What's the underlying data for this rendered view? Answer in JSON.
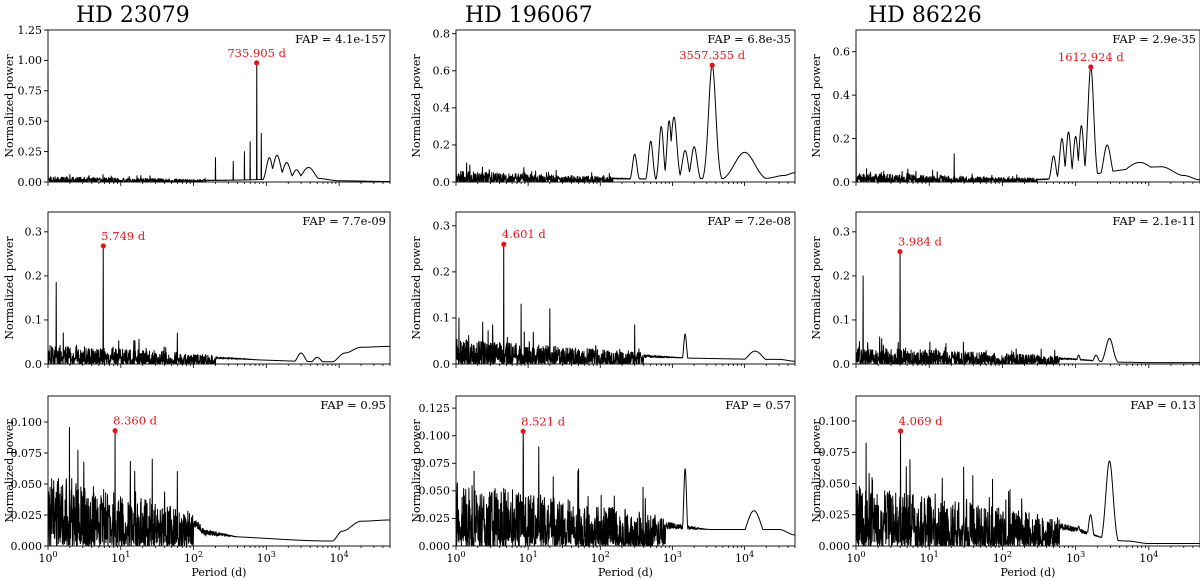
{
  "figure": {
    "columns": [
      "HD 23079",
      "HD 196067",
      "HD 86226"
    ],
    "xlabel": "Period (d)",
    "ylabel": "Normalized power",
    "xtick_labels": [
      "10",
      "10",
      "10",
      "10",
      "10"
    ],
    "xtick_exponents": [
      "0",
      "1",
      "2",
      "3",
      "4"
    ],
    "peak_color": "#e8141b",
    "line_color": "#000000"
  },
  "chart_data": [
    {
      "type": "line",
      "id": "p00",
      "star": "HD 23079",
      "row": 0,
      "xscale": "log",
      "xlim": [
        1,
        50000
      ],
      "ylim": [
        0,
        1.25
      ],
      "yticks": [
        0,
        0.25,
        0.5,
        0.75,
        1.0,
        1.25
      ],
      "ytick_labels": [
        "0.00",
        "0.25",
        "0.50",
        "0.75",
        "1.00",
        "1.25"
      ],
      "fap": "FAP = 4.1e-157",
      "peak": {
        "period": 735.905,
        "power": 0.98,
        "label": "735.905 d"
      },
      "noise_level": 0.045,
      "noise_end": 150,
      "features": [
        {
          "p": 1.0,
          "h": 0.93,
          "w": 0
        },
        {
          "p": 200,
          "h": 0.2,
          "w": 0
        },
        {
          "p": 350,
          "h": 0.17,
          "w": 0
        },
        {
          "p": 500,
          "h": 0.25,
          "w": 0
        },
        {
          "p": 600,
          "h": 0.33,
          "w": 0
        },
        {
          "p": 850,
          "h": 0.4,
          "w": 0
        },
        {
          "p": 1100,
          "h": 0.2,
          "w": 0.04
        },
        {
          "p": 1400,
          "h": 0.22,
          "w": 0.05
        },
        {
          "p": 1900,
          "h": 0.16,
          "w": 0.05
        },
        {
          "p": 2600,
          "h": 0.1,
          "w": 0.05
        },
        {
          "p": 3800,
          "h": 0.12,
          "w": 0.08
        }
      ],
      "tail": [
        {
          "p": 5000,
          "v": 0.03
        },
        {
          "p": 10000,
          "v": 0.01
        },
        {
          "p": 50000,
          "v": 0.004
        }
      ]
    },
    {
      "type": "line",
      "id": "p01",
      "star": "HD 196067",
      "row": 0,
      "xscale": "log",
      "xlim": [
        1,
        50000
      ],
      "ylim": [
        0,
        0.82
      ],
      "yticks": [
        0,
        0.2,
        0.4,
        0.6,
        0.8
      ],
      "ytick_labels": [
        "0.0",
        "0.2",
        "0.4",
        "0.6",
        "0.8"
      ],
      "fap": "FAP = 6.8e-35",
      "peak": {
        "period": 3557.355,
        "power": 0.63,
        "label": "3557.355 d"
      },
      "noise_level": 0.06,
      "noise_end": 150,
      "features": [
        {
          "p": 1.0,
          "h": 0.41,
          "w": 0
        },
        {
          "p": 300,
          "h": 0.15,
          "w": 0.03
        },
        {
          "p": 500,
          "h": 0.22,
          "w": 0.03
        },
        {
          "p": 700,
          "h": 0.3,
          "w": 0.03
        },
        {
          "p": 900,
          "h": 0.33,
          "w": 0.03
        },
        {
          "p": 1050,
          "h": 0.35,
          "w": 0.04
        },
        {
          "p": 1500,
          "h": 0.17,
          "w": 0.04
        },
        {
          "p": 2000,
          "h": 0.19,
          "w": 0.04
        },
        {
          "p": 3557.355,
          "h": 0.63,
          "w": 0.05
        },
        {
          "p": 10000,
          "h": 0.16,
          "w": 0.14
        }
      ],
      "tail": [
        {
          "p": 20000,
          "v": 0.02
        },
        {
          "p": 35000,
          "v": 0.035
        },
        {
          "p": 50000,
          "v": 0.05
        }
      ]
    },
    {
      "type": "line",
      "id": "p02",
      "star": "HD 86226",
      "row": 0,
      "xscale": "log",
      "xlim": [
        1,
        50000
      ],
      "ylim": [
        0,
        0.7
      ],
      "yticks": [
        0,
        0.2,
        0.4,
        0.6
      ],
      "ytick_labels": [
        "0.0",
        "0.2",
        "0.4",
        "0.6"
      ],
      "fap": "FAP = 2.9e-35",
      "peak": {
        "period": 1612.924,
        "power": 0.53,
        "label": "1612.924 d"
      },
      "noise_level": 0.04,
      "noise_end": 300,
      "features": [
        {
          "p": 1.0,
          "h": 0.44,
          "w": 0
        },
        {
          "p": 22,
          "h": 0.13,
          "w": 0
        },
        {
          "p": 500,
          "h": 0.12,
          "w": 0.03
        },
        {
          "p": 650,
          "h": 0.2,
          "w": 0.03
        },
        {
          "p": 800,
          "h": 0.23,
          "w": 0.03
        },
        {
          "p": 1000,
          "h": 0.21,
          "w": 0.03
        },
        {
          "p": 1200,
          "h": 0.26,
          "w": 0.03
        },
        {
          "p": 1612.924,
          "h": 0.53,
          "w": 0.04
        },
        {
          "p": 2700,
          "h": 0.17,
          "w": 0.05
        },
        {
          "p": 7500,
          "h": 0.09,
          "w": 0.2
        }
      ],
      "tail": [
        {
          "p": 15000,
          "v": 0.07
        },
        {
          "p": 30000,
          "v": 0.03
        },
        {
          "p": 50000,
          "v": 0.01
        }
      ]
    },
    {
      "type": "line",
      "id": "p10",
      "star": "HD 23079",
      "row": 1,
      "xscale": "log",
      "xlim": [
        1,
        50000
      ],
      "ylim": [
        0,
        0.345
      ],
      "yticks": [
        0,
        0.1,
        0.2,
        0.3
      ],
      "ytick_labels": [
        "0.0",
        "0.1",
        "0.2",
        "0.3"
      ],
      "fap": "FAP = 7.7e-09",
      "peak": {
        "period": 5.749,
        "power": 0.268,
        "label": "5.749 d"
      },
      "noise_level": 0.045,
      "noise_end": 200,
      "features": [
        {
          "p": 1.3,
          "h": 0.185,
          "w": 0
        },
        {
          "p": 60,
          "h": 0.07,
          "w": 0
        },
        {
          "p": 3000,
          "h": 0.025,
          "w": 0.05
        },
        {
          "p": 5000,
          "h": 0.015,
          "w": 0.05
        }
      ],
      "tail": [
        {
          "p": 8000,
          "v": 0.005
        },
        {
          "p": 12000,
          "v": 0.025
        },
        {
          "p": 20000,
          "v": 0.038
        },
        {
          "p": 50000,
          "v": 0.04
        }
      ]
    },
    {
      "type": "line",
      "id": "p11",
      "star": "HD 196067",
      "row": 1,
      "xscale": "log",
      "xlim": [
        1,
        50000
      ],
      "ylim": [
        0,
        0.33
      ],
      "yticks": [
        0,
        0.1,
        0.2,
        0.3
      ],
      "ytick_labels": [
        "0.0",
        "0.1",
        "0.2",
        "0.3"
      ],
      "fap": "FAP = 7.2e-08",
      "peak": {
        "period": 4.601,
        "power": 0.26,
        "label": "4.601 d"
      },
      "noise_level": 0.055,
      "noise_end": 400,
      "features": [
        {
          "p": 1.1,
          "h": 0.1,
          "w": 0
        },
        {
          "p": 8,
          "h": 0.13,
          "w": 0
        },
        {
          "p": 20,
          "h": 0.12,
          "w": 0
        },
        {
          "p": 300,
          "h": 0.085,
          "w": 0
        },
        {
          "p": 1500,
          "h": 0.065,
          "w": 0.02
        },
        {
          "p": 14000,
          "h": 0.028,
          "w": 0.1
        }
      ],
      "tail": [
        {
          "p": 30000,
          "v": 0.01
        },
        {
          "p": 50000,
          "v": 0.006
        }
      ]
    },
    {
      "type": "line",
      "id": "p12",
      "star": "HD 86226",
      "row": 1,
      "xscale": "log",
      "xlim": [
        1,
        50000
      ],
      "ylim": [
        0,
        0.345
      ],
      "yticks": [
        0,
        0.1,
        0.2,
        0.3
      ],
      "ytick_labels": [
        "0.0",
        "0.1",
        "0.2",
        "0.3"
      ],
      "fap": "FAP = 2.1e-11",
      "peak": {
        "period": 3.984,
        "power": 0.255,
        "label": "3.984 d"
      },
      "noise_level": 0.04,
      "noise_end": 600,
      "features": [
        {
          "p": 1.25,
          "h": 0.2,
          "w": 0
        },
        {
          "p": 1100,
          "h": 0.02,
          "w": 0.02
        },
        {
          "p": 1900,
          "h": 0.02,
          "w": 0.03
        },
        {
          "p": 2900,
          "h": 0.058,
          "w": 0.05
        }
      ],
      "tail": [
        {
          "p": 5000,
          "v": 0.004
        },
        {
          "p": 10000,
          "v": 0.003
        },
        {
          "p": 50000,
          "v": 0.003
        }
      ]
    },
    {
      "type": "line",
      "id": "p20",
      "star": "HD 23079",
      "row": 2,
      "xscale": "log",
      "xlim": [
        1,
        50000
      ],
      "ylim": [
        0,
        0.121
      ],
      "yticks": [
        0,
        0.025,
        0.05,
        0.075,
        0.1
      ],
      "ytick_labels": [
        "0.000",
        "0.025",
        "0.050",
        "0.075",
        "0.100"
      ],
      "fap": "FAP = 0.95",
      "peak": {
        "period": 8.36,
        "power": 0.093,
        "label": "8.360 d"
      },
      "noise_level": 0.06,
      "noise_end": 100,
      "features": [
        {
          "p": 27,
          "h": 0.07,
          "w": 0
        },
        {
          "p": 60,
          "h": 0.06,
          "w": 0
        }
      ],
      "tail": [
        {
          "p": 150,
          "v": 0.008
        },
        {
          "p": 8000,
          "v": 0.004
        },
        {
          "p": 11000,
          "v": 0.012
        },
        {
          "p": 20000,
          "v": 0.02
        },
        {
          "p": 50000,
          "v": 0.021
        }
      ]
    },
    {
      "type": "line",
      "id": "p21",
      "star": "HD 196067",
      "row": 2,
      "xscale": "log",
      "xlim": [
        1,
        50000
      ],
      "ylim": [
        0,
        0.136
      ],
      "yticks": [
        0,
        0.025,
        0.05,
        0.075,
        0.1,
        0.125
      ],
      "ytick_labels": [
        "0.000",
        "0.025",
        "0.050",
        "0.075",
        "0.100",
        "0.125"
      ],
      "fap": "FAP = 0.57",
      "peak": {
        "period": 8.521,
        "power": 0.104,
        "label": "8.521 d"
      },
      "noise_level": 0.06,
      "noise_end": 800,
      "features": [
        {
          "p": 14,
          "h": 0.09,
          "w": 0
        },
        {
          "p": 1500,
          "h": 0.07,
          "w": 0.02
        },
        {
          "p": 13500,
          "h": 0.032,
          "w": 0.1
        }
      ],
      "tail": [
        {
          "p": 30000,
          "v": 0.015
        },
        {
          "p": 50000,
          "v": 0.01
        }
      ]
    },
    {
      "type": "line",
      "id": "p22",
      "star": "HD 86226",
      "row": 2,
      "xscale": "log",
      "xlim": [
        1,
        50000
      ],
      "ylim": [
        0,
        0.12
      ],
      "yticks": [
        0,
        0.025,
        0.05,
        0.075,
        0.1
      ],
      "ytick_labels": [
        "0.000",
        "0.025",
        "0.050",
        "0.075",
        "0.100"
      ],
      "fap": "FAP = 0.13",
      "peak": {
        "period": 4.069,
        "power": 0.092,
        "label": "4.069 d"
      },
      "noise_level": 0.05,
      "noise_end": 600,
      "features": [
        {
          "p": 1100,
          "h": 0.016,
          "w": 0.02
        },
        {
          "p": 1600,
          "h": 0.025,
          "w": 0.03
        },
        {
          "p": 2900,
          "h": 0.068,
          "w": 0.05
        }
      ],
      "tail": [
        {
          "p": 5000,
          "v": 0.004
        },
        {
          "p": 10000,
          "v": 0.002
        },
        {
          "p": 50000,
          "v": 0.002
        }
      ]
    }
  ]
}
